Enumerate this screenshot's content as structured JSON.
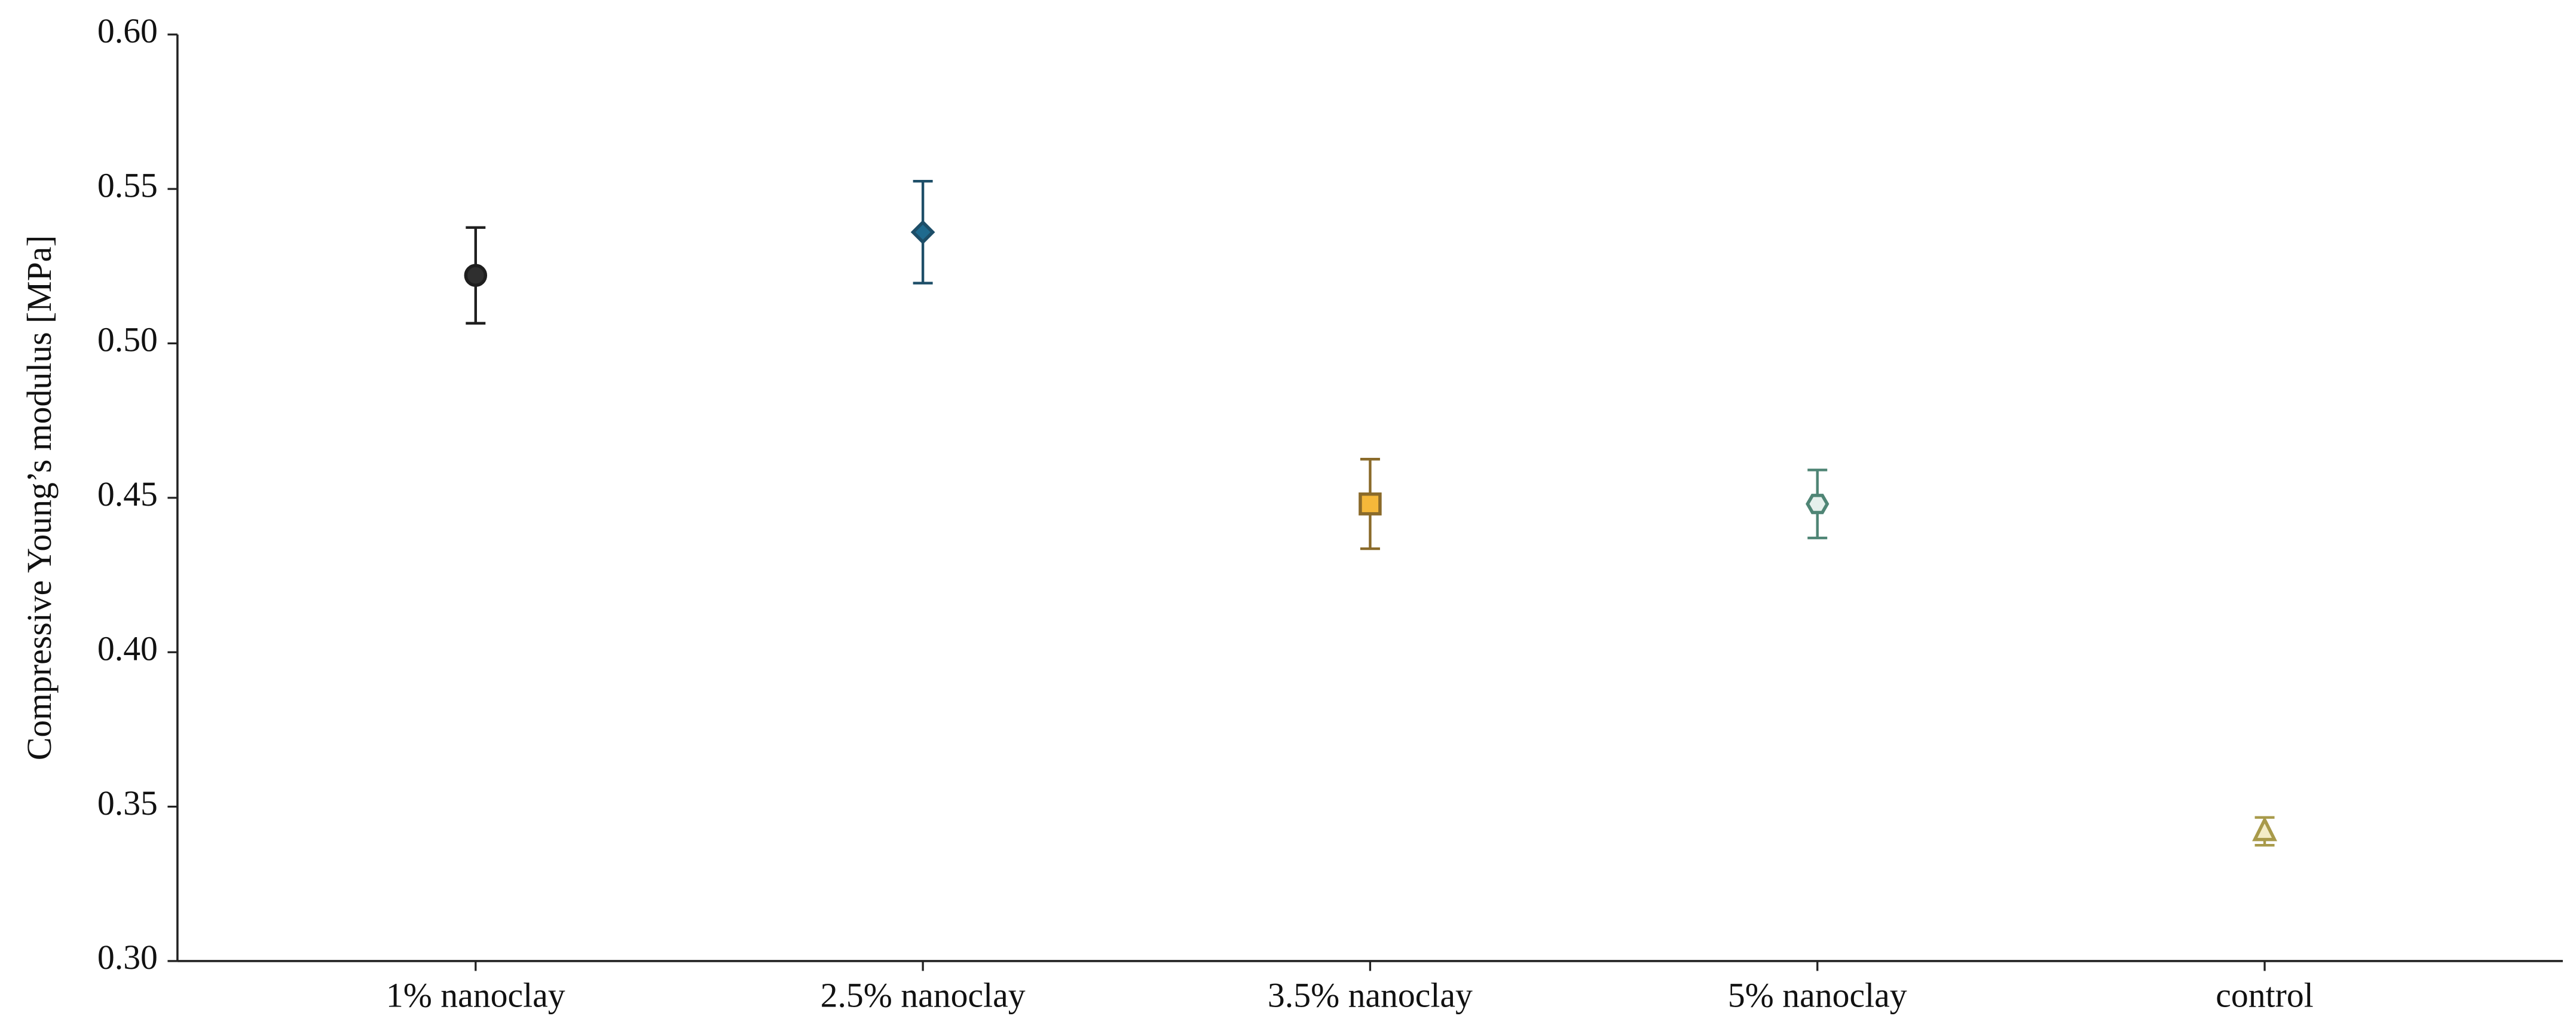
{
  "chart_data": {
    "type": "errorbar",
    "y_label": "Compressive Young’s modulus [MPa]",
    "categories": [
      "1% nanoclay",
      "2.5% nanoclay",
      "3.5% nanoclay",
      "5% nanoclay",
      "control"
    ],
    "values": [
      0.522,
      0.536,
      0.448,
      0.448,
      0.342
    ],
    "errors": [
      0.0155,
      0.0165,
      0.0145,
      0.011,
      0.0045
    ],
    "markers": [
      "circle",
      "diamond",
      "square",
      "hexagon",
      "triangle"
    ],
    "colors": [
      "#1e1e1e",
      "#1d4e68",
      "#8a6a2a",
      "#4f8575",
      "#a89a4a"
    ],
    "fill_colors": [
      "#2f2f2f",
      "#1f6a8e",
      "#f5b83a",
      "#e6f0ec",
      "#f3edc8"
    ],
    "ylim": [
      0.3,
      0.6
    ],
    "yticks": [
      {
        "value": 0.3,
        "label": "0.30"
      },
      {
        "value": 0.35,
        "label": "0.35"
      },
      {
        "value": 0.4,
        "label": "0.40"
      },
      {
        "value": 0.45,
        "label": "0.45"
      },
      {
        "value": 0.5,
        "label": "0.50"
      },
      {
        "value": 0.55,
        "label": "0.55"
      },
      {
        "value": 0.6,
        "label": "0.60"
      }
    ]
  }
}
